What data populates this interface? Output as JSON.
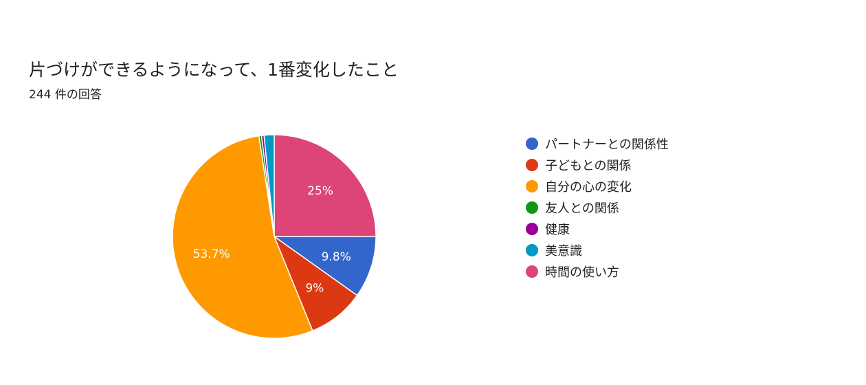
{
  "title": "片づけができるようになって、1番変化したこと",
  "subtitle": "244 件の回答",
  "chart_data": {
    "type": "pie",
    "legend_position": "right",
    "categories": [
      "パートナーとの関係性",
      "子どもとの関係",
      "自分の心の変化",
      "友人との関係",
      "健康",
      "美意識",
      "時間の使い方"
    ],
    "values": [
      9.8,
      9,
      53.7,
      0.4,
      0.4,
      1.6,
      25
    ],
    "data_labels": [
      "9.8%",
      "9%",
      "53.7%",
      "",
      "",
      "",
      "25%"
    ],
    "colors": [
      "#3366cc",
      "#dc3912",
      "#ff9900",
      "#109618",
      "#990099",
      "#0099c6",
      "#dd4477"
    ]
  }
}
